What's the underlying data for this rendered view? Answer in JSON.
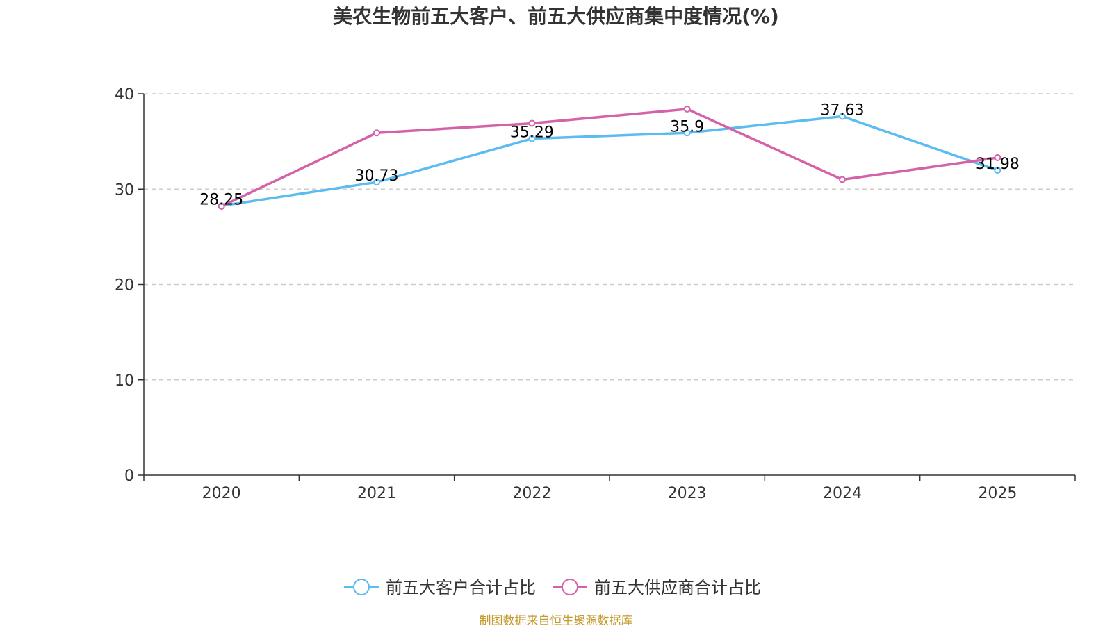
{
  "chart_data": {
    "type": "line",
    "title": "美农生物前五大客户、前五大供应商集中度情况(%)",
    "categories": [
      "2020",
      "2021",
      "2022",
      "2023",
      "2024",
      "2025"
    ],
    "ylim": [
      0,
      40
    ],
    "yticks": [
      0,
      10,
      20,
      30,
      40
    ],
    "grid": true,
    "legend_position": "bottom",
    "xlabel": "",
    "ylabel": "",
    "series": [
      {
        "name": "前五大客户合计占比",
        "color": "#5bbcef",
        "values": [
          28.25,
          30.73,
          35.29,
          35.9,
          37.63,
          31.98
        ],
        "labels": [
          "28.25",
          "30.73",
          "35.29",
          "35.9",
          "37.63",
          "31.98"
        ],
        "show_labels": true
      },
      {
        "name": "前五大供应商合计占比",
        "color": "#d462a8",
        "values": [
          28.2,
          35.9,
          36.9,
          38.4,
          31.0,
          33.3
        ],
        "show_labels": false
      }
    ],
    "source": "制图数据来自恒生聚源数据库"
  }
}
